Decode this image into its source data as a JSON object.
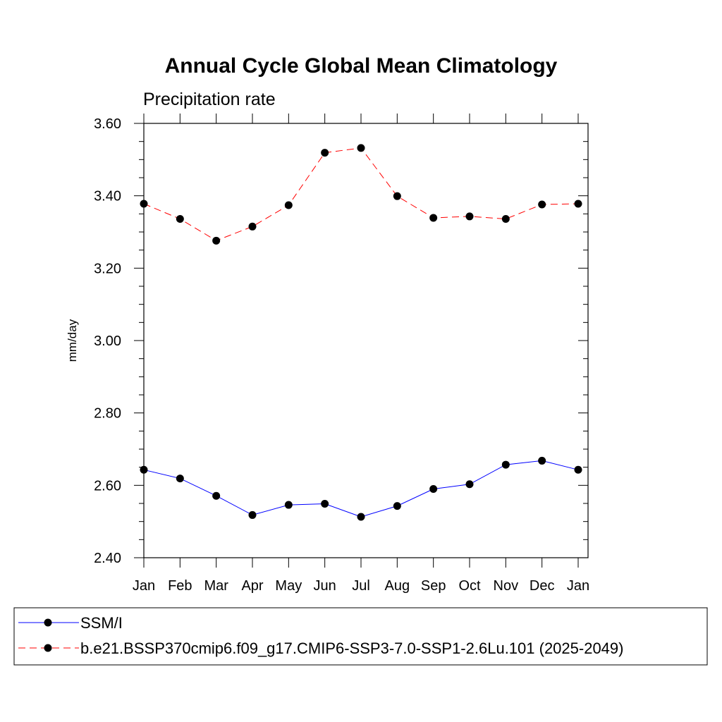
{
  "chart_data": {
    "type": "line",
    "title": "Annual Cycle Global Mean Climatology",
    "subtitle": "Precipitation rate",
    "xlabel": "",
    "ylabel": "mm/day",
    "categories": [
      "Jan",
      "Feb",
      "Mar",
      "Apr",
      "May",
      "Jun",
      "Jul",
      "Aug",
      "Sep",
      "Oct",
      "Nov",
      "Dec",
      "Jan"
    ],
    "ylim": [
      2.4,
      3.6
    ],
    "yticks": [
      "2.40",
      "2.60",
      "2.80",
      "3.00",
      "3.20",
      "3.40",
      "3.60"
    ],
    "grid": false,
    "legend_position": "bottom",
    "series": [
      {
        "name": "SSM/I",
        "color": "#0000ff",
        "dash": "solid",
        "values": [
          2.643,
          2.619,
          2.571,
          2.518,
          2.546,
          2.549,
          2.513,
          2.543,
          2.59,
          2.603,
          2.657,
          2.668,
          2.643
        ]
      },
      {
        "name": "b.e21.BSSP370cmip6.f09_g17.CMIP6-SSP3-7.0-SSP1-2.6Lu.101 (2025-2049)",
        "color": "#ff0000",
        "dash": "dashed",
        "values": [
          3.378,
          3.336,
          3.276,
          3.315,
          3.374,
          3.519,
          3.532,
          3.399,
          3.339,
          3.343,
          3.336,
          3.376,
          3.378
        ]
      }
    ]
  }
}
